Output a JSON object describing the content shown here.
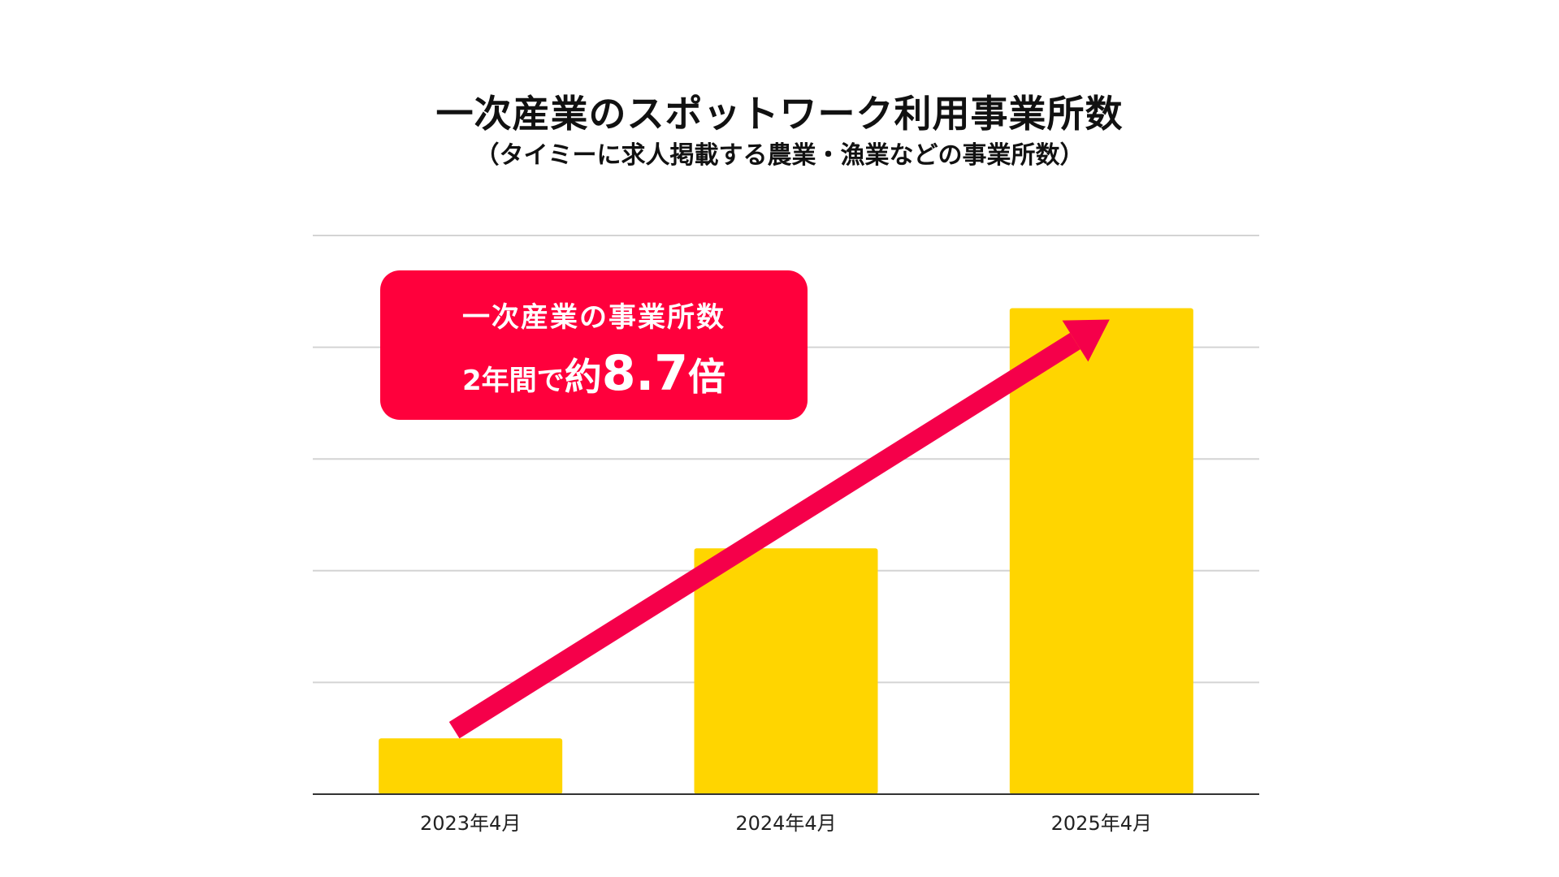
{
  "chart_data": {
    "type": "bar",
    "title": "一次産業のスポットワーク利用事業所数",
    "subtitle": "（タイミーに求人掲載する農業・漁業などの事業所数）",
    "categories": [
      "2023年4月",
      "2024年4月",
      "2025年4月"
    ],
    "values": [
      1,
      4.4,
      8.7
    ],
    "ylim": [
      0,
      10
    ],
    "grid": true,
    "bar_color": "#ffd500",
    "arrow_color": "#f5004a",
    "annotation": {
      "line1": "一次産業の事業所数",
      "line2_prefix": "2年間で",
      "line2_kanji": "約",
      "line2_value": "8.7",
      "line2_suffix": "倍",
      "color": "#ff003c"
    }
  }
}
